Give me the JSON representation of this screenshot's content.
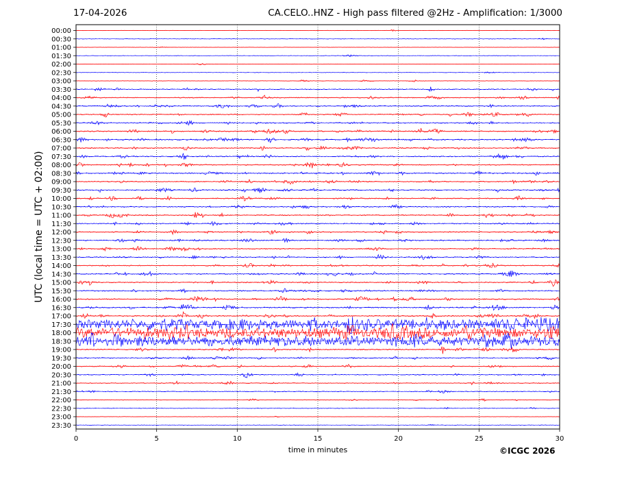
{
  "header": {
    "date": "17-04-2026",
    "title": "CA.CELO..HNZ - High pass filtered @2Hz - Amplification: 1/3000"
  },
  "footer": {
    "copyright": "©ICGC 2026"
  },
  "chart_data": {
    "type": "line",
    "title": "CA.CELO..HNZ - High pass filtered @2Hz - Amplification: 1/3000",
    "xlabel": "time in minutes",
    "ylabel": "UTC (local time = UTC + 02:00)",
    "xlim": [
      0,
      30
    ],
    "x_ticks": [
      0,
      5,
      10,
      15,
      20,
      25,
      30
    ],
    "vertical_gridlines_at": [
      5,
      10,
      15,
      20,
      25
    ],
    "grid": "dotted vertical",
    "row_labels": [
      "00:00",
      "00:30",
      "01:00",
      "01:30",
      "02:00",
      "02:30",
      "03:00",
      "03:30",
      "04:00",
      "04:30",
      "05:00",
      "05:30",
      "06:00",
      "06:30",
      "07:00",
      "07:30",
      "08:00",
      "08:30",
      "09:00",
      "09:30",
      "10:00",
      "10:30",
      "11:00",
      "11:30",
      "12:00",
      "12:30",
      "13:00",
      "13:30",
      "14:00",
      "14:30",
      "15:00",
      "15:30",
      "16:00",
      "16:30",
      "17:00",
      "17:30",
      "18:00",
      "18:30",
      "19:00",
      "19:30",
      "20:00",
      "20:30",
      "21:00",
      "21:30",
      "22:00",
      "22:30",
      "23:00",
      "23:30"
    ],
    "series_colors": {
      "full_hour": "#ff0000",
      "half_hour": "#0000ff"
    },
    "activity_level": [
      0.02,
      0.03,
      0.02,
      0.05,
      0.04,
      0.03,
      0.1,
      0.35,
      0.4,
      0.45,
      0.45,
      0.45,
      0.55,
      0.55,
      0.5,
      0.5,
      0.5,
      0.55,
      0.5,
      0.5,
      0.45,
      0.45,
      0.5,
      0.45,
      0.5,
      0.5,
      0.45,
      0.45,
      0.45,
      0.5,
      0.5,
      0.45,
      0.55,
      0.55,
      0.6,
      0.9,
      1.0,
      0.9,
      0.5,
      0.4,
      0.4,
      0.35,
      0.3,
      0.25,
      0.2,
      0.1,
      0.05,
      0.03
    ]
  }
}
